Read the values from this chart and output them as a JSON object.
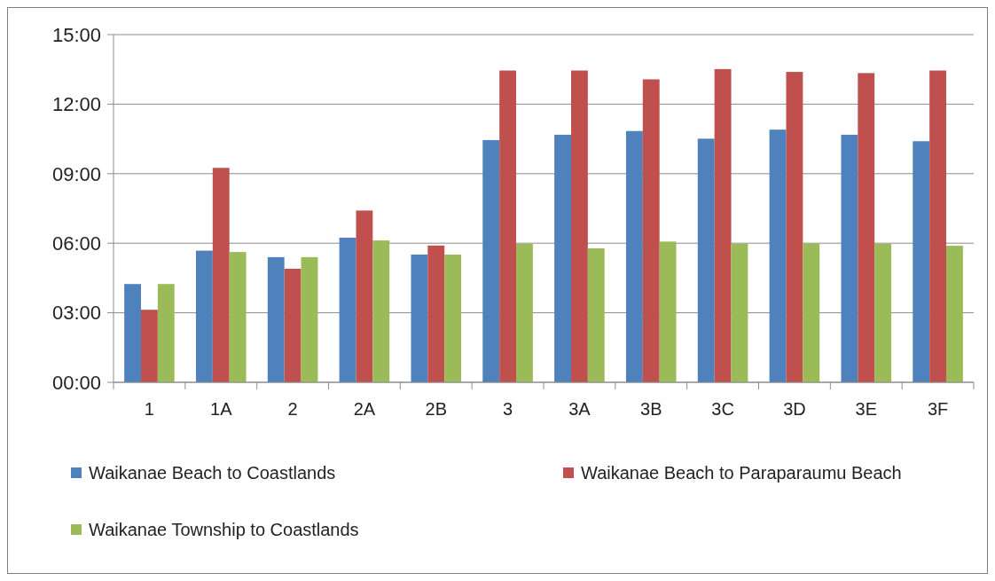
{
  "chart_data": {
    "type": "bar",
    "categories": [
      "1",
      "1A",
      "2",
      "2A",
      "2B",
      "3",
      "3A",
      "3B",
      "3C",
      "3D",
      "3E",
      "3F"
    ],
    "series": [
      {
        "name": "Waikanae Beach to Coastlands",
        "color": "#4f81bd",
        "values": [
          4.24,
          5.68,
          5.4,
          6.24,
          5.51,
          10.45,
          10.68,
          10.84,
          10.51,
          10.9,
          10.68,
          10.4
        ]
      },
      {
        "name": "Waikanae Beach to Paraparaumu Beach",
        "color": "#c0504d",
        "values": [
          3.13,
          9.25,
          4.9,
          7.41,
          5.9,
          13.45,
          13.45,
          13.07,
          13.51,
          13.39,
          13.34,
          13.45
        ]
      },
      {
        "name": "Waikanae Township to Coastlands",
        "color": "#9bbb59",
        "values": [
          4.24,
          5.62,
          5.4,
          6.12,
          5.51,
          5.97,
          5.78,
          6.07,
          5.97,
          5.99,
          5.97,
          5.89
        ]
      }
    ],
    "ylim": [
      0,
      15
    ],
    "yticks": [
      {
        "value": 0,
        "label": "00:00"
      },
      {
        "value": 3,
        "label": "03:00"
      },
      {
        "value": 6,
        "label": "06:00"
      },
      {
        "value": 9,
        "label": "09:00"
      },
      {
        "value": 12,
        "label": "12:00"
      },
      {
        "value": 15,
        "label": "15:00"
      }
    ],
    "grid": "y",
    "legend": "bottom"
  }
}
